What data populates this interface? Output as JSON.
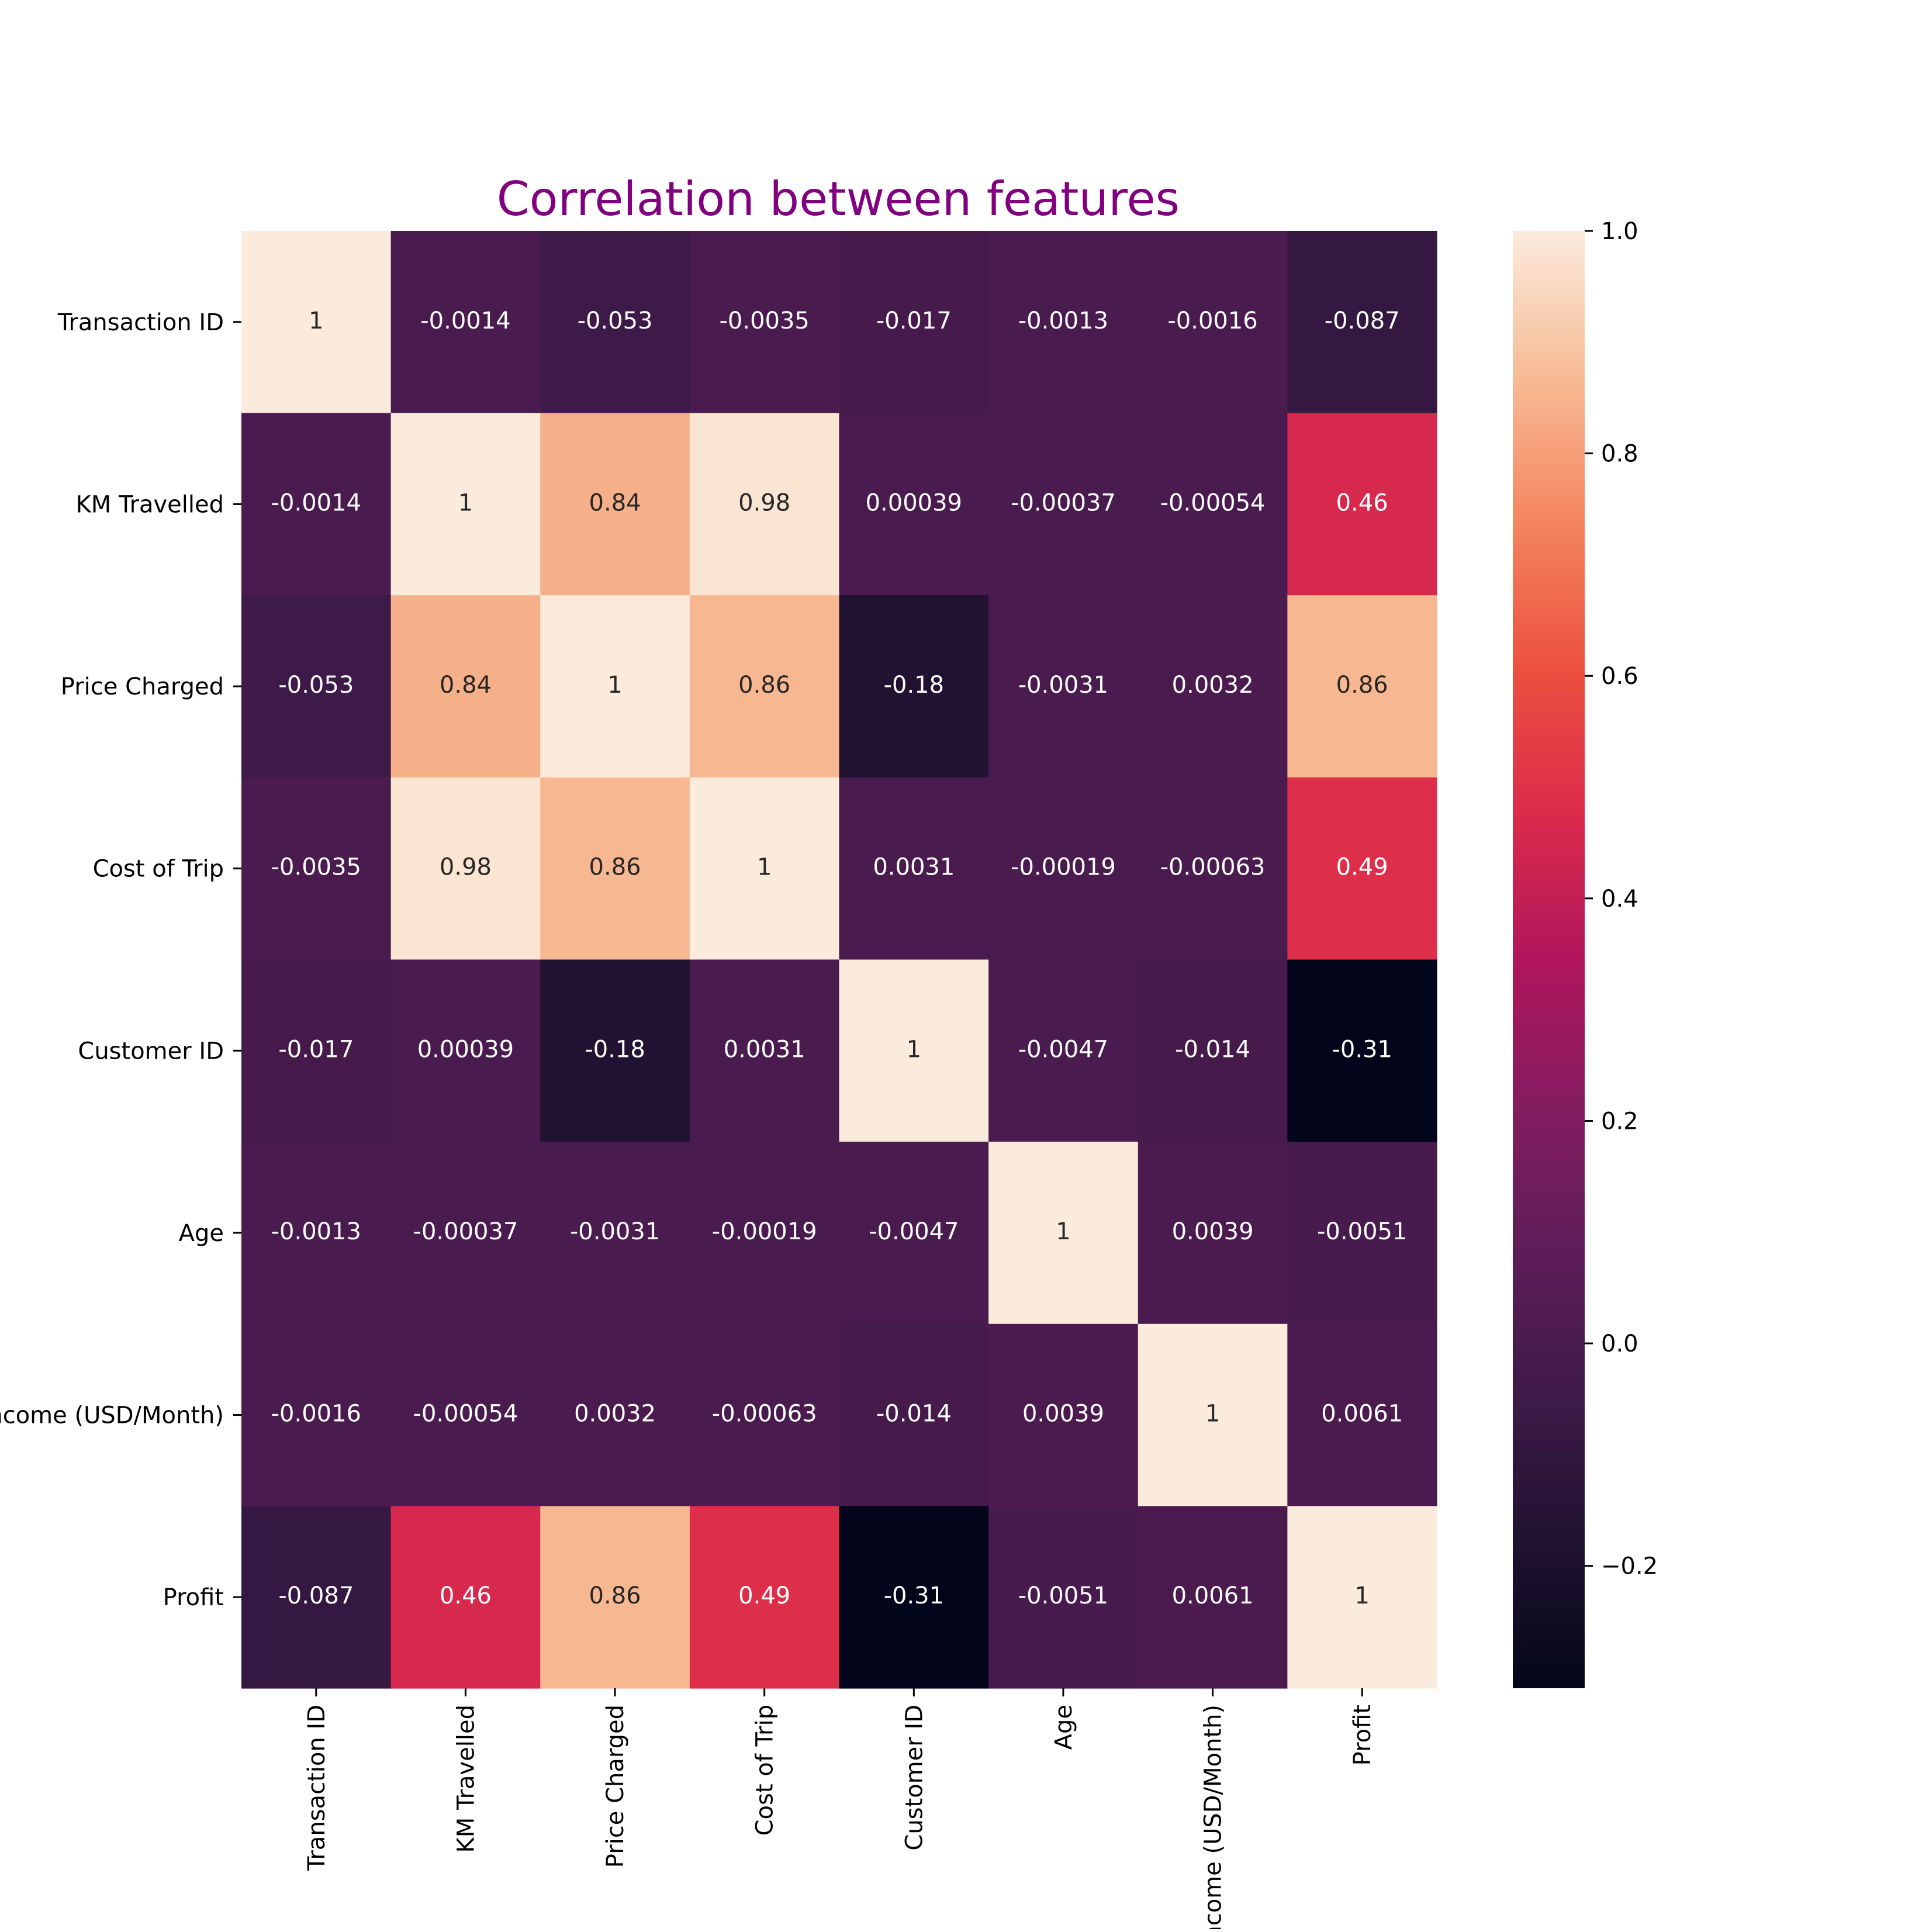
{
  "chart_data": {
    "type": "heatmap",
    "title": "Correlation between features",
    "title_color": "#800080",
    "xlabel": "",
    "ylabel": "",
    "colormap": "rocket",
    "vmin": -0.31,
    "vmax": 1.0,
    "rows": [
      "Transaction ID",
      "KM Travelled",
      "Price Charged",
      "Cost of Trip",
      "Customer ID",
      "Age",
      "Income (USD/Month)",
      "Profit"
    ],
    "columns": [
      "Transaction ID",
      "KM Travelled",
      "Price Charged",
      "Cost of Trip",
      "Customer ID",
      "Age",
      "Income (USD/Month)",
      "Profit"
    ],
    "values": [
      [
        1,
        -0.0014,
        -0.053,
        -0.0035,
        -0.017,
        -0.0013,
        -0.0016,
        -0.087
      ],
      [
        -0.0014,
        1,
        0.84,
        0.98,
        0.00039,
        -0.00037,
        -0.00054,
        0.46
      ],
      [
        -0.053,
        0.84,
        1,
        0.86,
        -0.18,
        -0.0031,
        0.0032,
        0.86
      ],
      [
        -0.0035,
        0.98,
        0.86,
        1,
        0.0031,
        -0.00019,
        -0.00063,
        0.49
      ],
      [
        -0.017,
        0.00039,
        -0.18,
        0.0031,
        1,
        -0.0047,
        -0.014,
        -0.31
      ],
      [
        -0.0013,
        -0.00037,
        -0.0031,
        -0.00019,
        -0.0047,
        1,
        0.0039,
        -0.0051
      ],
      [
        -0.0016,
        -0.00054,
        0.0032,
        -0.00063,
        -0.014,
        0.0039,
        1,
        0.0061
      ],
      [
        -0.087,
        0.46,
        0.86,
        0.49,
        -0.31,
        -0.0051,
        0.0061,
        1
      ]
    ],
    "labels": [
      [
        "1",
        "-0.0014",
        "-0.053",
        "-0.0035",
        "-0.017",
        "-0.0013",
        "-0.0016",
        "-0.087"
      ],
      [
        "-0.0014",
        "1",
        "0.84",
        "0.98",
        "0.00039",
        "-0.00037",
        "-0.00054",
        "0.46"
      ],
      [
        "-0.053",
        "0.84",
        "1",
        "0.86",
        "-0.18",
        "-0.0031",
        "0.0032",
        "0.86"
      ],
      [
        "-0.0035",
        "0.98",
        "0.86",
        "1",
        "0.0031",
        "-0.00019",
        "-0.00063",
        "0.49"
      ],
      [
        "-0.017",
        "0.00039",
        "-0.18",
        "0.0031",
        "1",
        "-0.0047",
        "-0.014",
        "-0.31"
      ],
      [
        "-0.0013",
        "-0.00037",
        "-0.0031",
        "-0.00019",
        "-0.0047",
        "1",
        "0.0039",
        "-0.0051"
      ],
      [
        "-0.0016",
        "-0.00054",
        "0.0032",
        "-0.00063",
        "-0.014",
        "0.0039",
        "1",
        "0.0061"
      ],
      [
        "-0.087",
        "0.46",
        "0.86",
        "0.49",
        "-0.31",
        "-0.0051",
        "0.0061",
        "1"
      ]
    ],
    "colorbar": {
      "ticks": [
        1.0,
        0.8,
        0.6,
        0.4,
        0.2,
        0.0,
        -0.2
      ],
      "tick_labels": [
        "1.0",
        "0.8",
        "0.6",
        "0.4",
        "0.2",
        "0.0",
        "−0.2"
      ]
    }
  }
}
